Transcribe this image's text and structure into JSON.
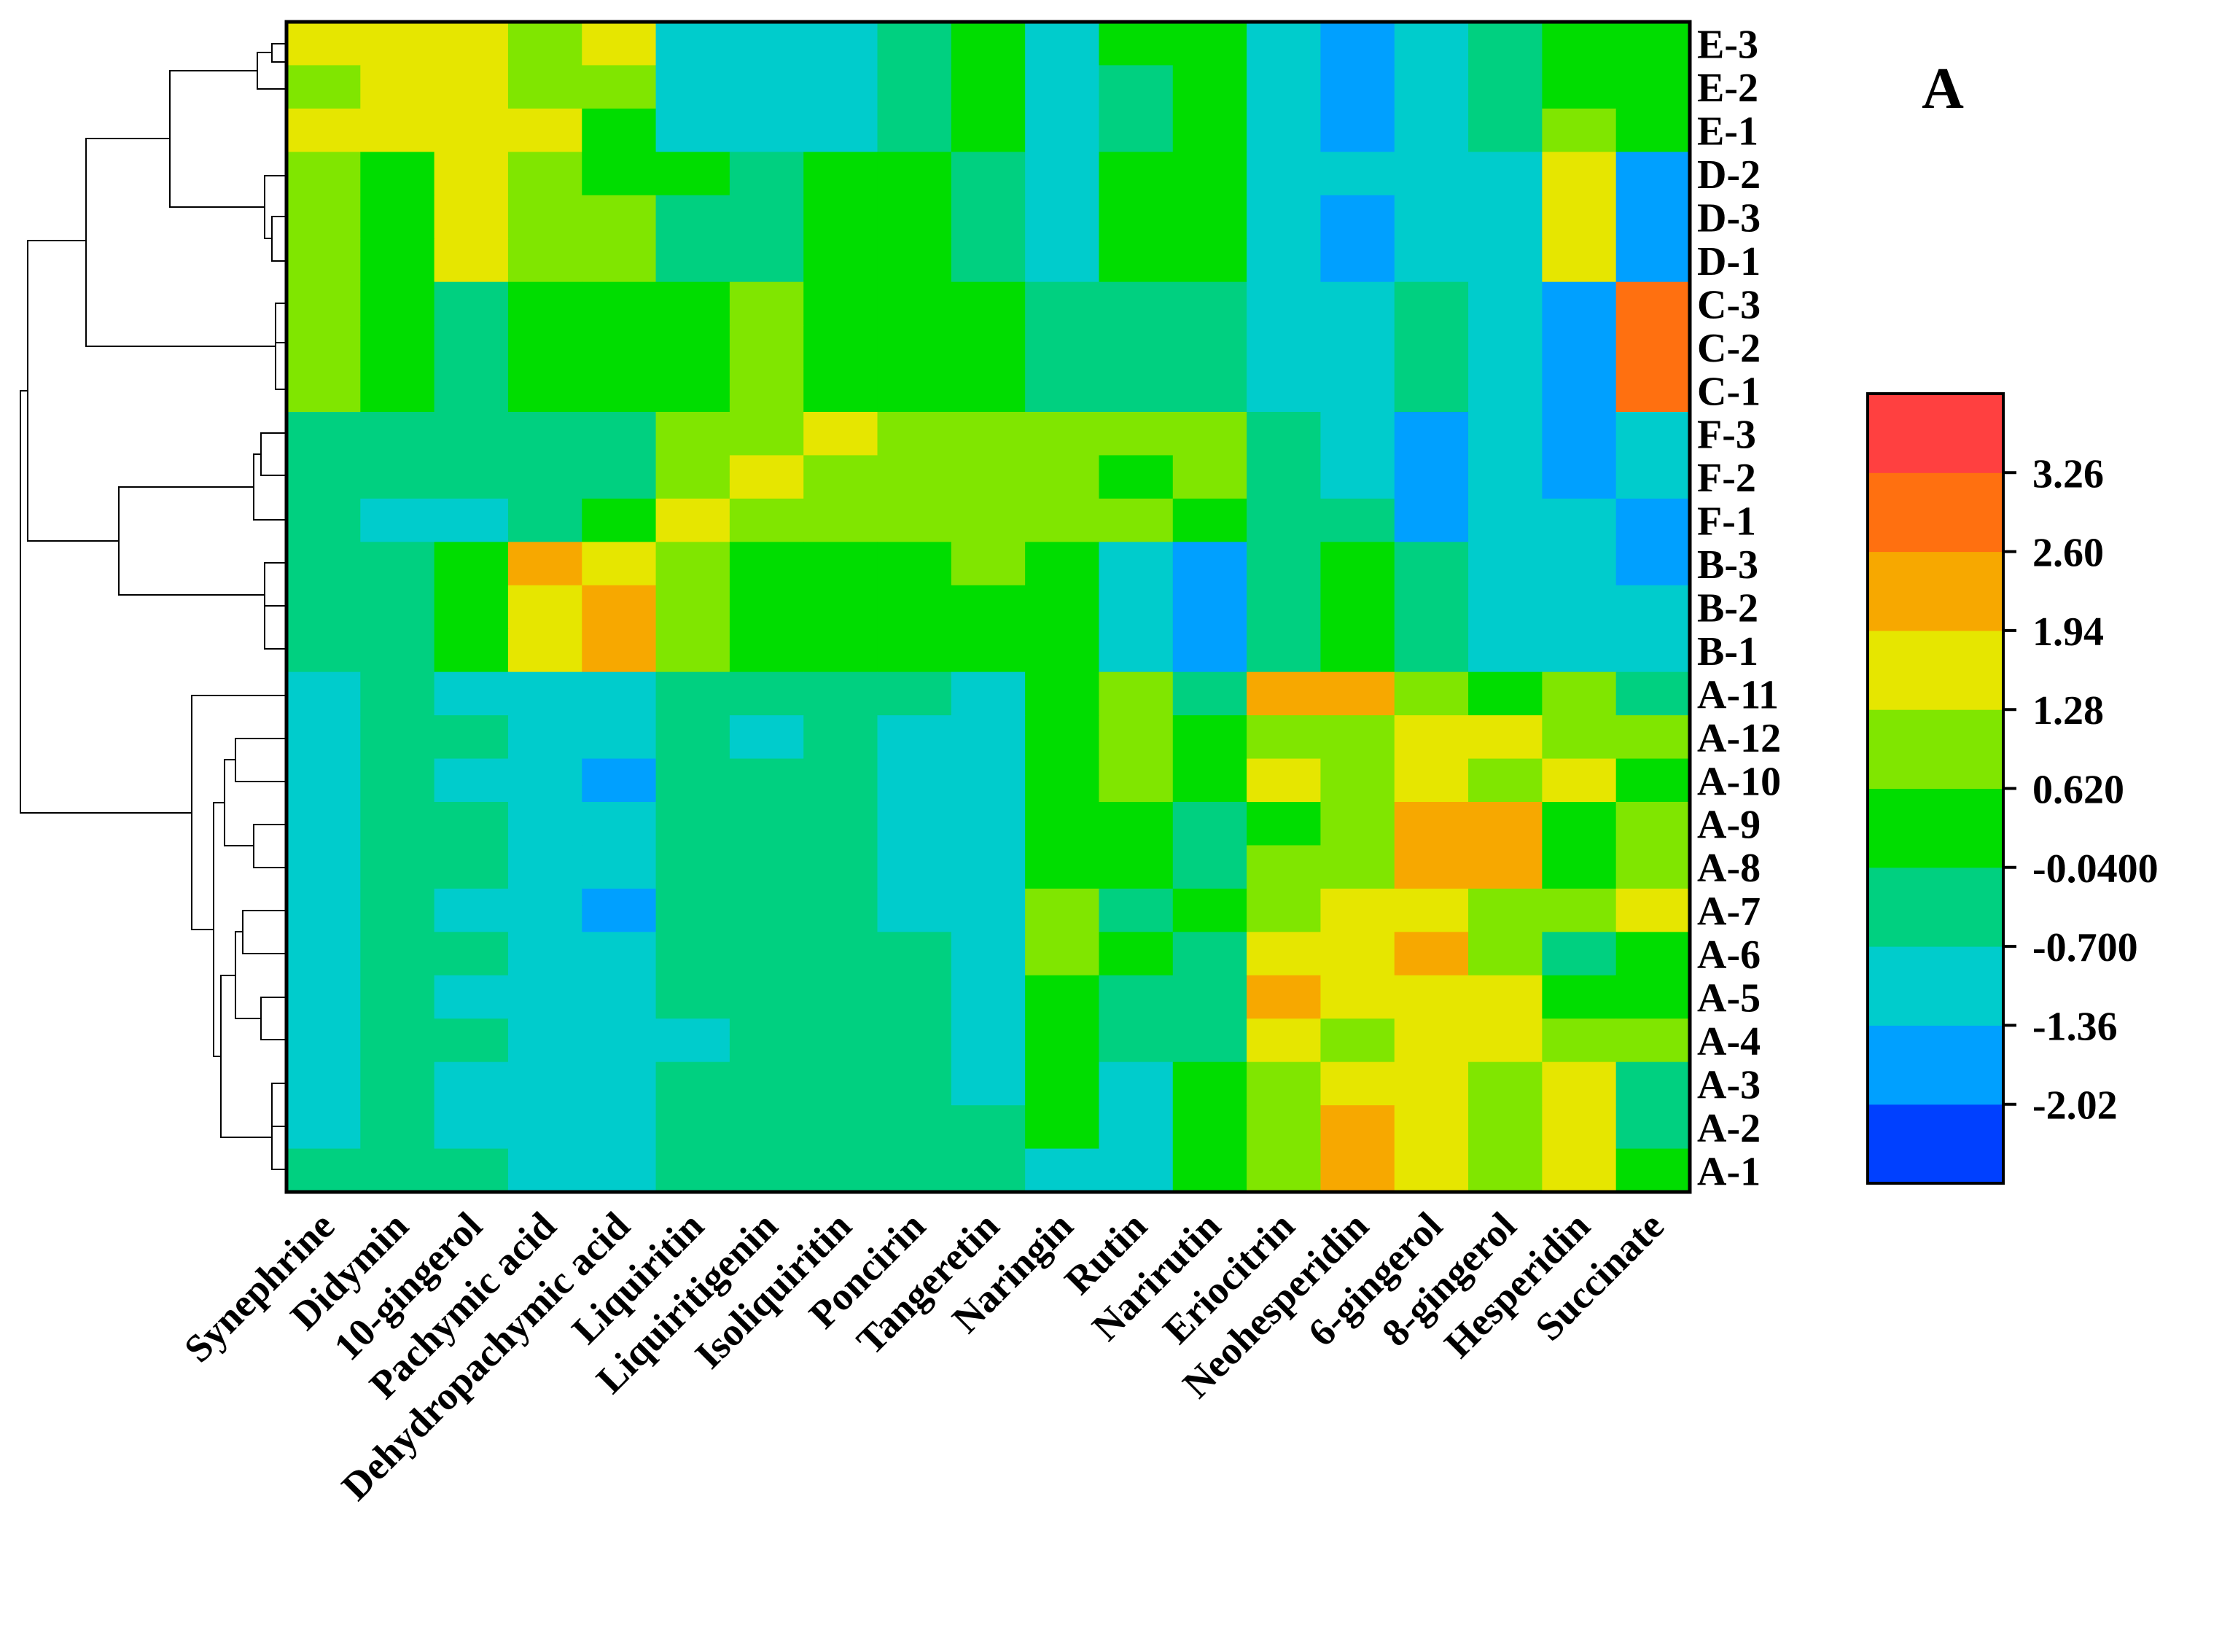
{
  "chart_data": {
    "type": "heatmap",
    "panel_label": "A",
    "rows": [
      "E-3",
      "E-2",
      "E-1",
      "D-2",
      "D-3",
      "D-1",
      "C-3",
      "C-2",
      "C-1",
      "F-3",
      "F-2",
      "F-1",
      "B-3",
      "B-2",
      "B-1",
      "A-11",
      "A-12",
      "A-10",
      "A-9",
      "A-8",
      "A-7",
      "A-6",
      "A-5",
      "A-4",
      "A-3",
      "A-2",
      "A-1"
    ],
    "columns": [
      "Synephrine",
      "Didymin",
      "10-gingerol",
      "Pachymic acid",
      "Dehydropachymic acid",
      "Liquiritin",
      "Liquiritigenin",
      "Isoliquiritin",
      "Poncirin",
      "Tangeretin",
      "Naringin",
      "Rutin",
      "Narirutin",
      "Eriocitrin",
      "Neohesperidin",
      "6-gingerol",
      "8-gingerol",
      "Hesperidin",
      "Succinate"
    ],
    "colorbar": {
      "colors": [
        "#0040ff",
        "#00a0ff",
        "#00cccc",
        "#00d080",
        "#00dd00",
        "#80e600",
        "#e6e600",
        "#f7a800",
        "#ff7010",
        "#ff4040"
      ],
      "tick_labels": [
        "-2.02",
        "-1.36",
        "-0.700",
        "-0.0400",
        "0.620",
        "1.28",
        "1.94",
        "2.60",
        "3.26"
      ],
      "min": -2.68,
      "max": 3.92
    },
    "values": [
      [
        6,
        6,
        6,
        5,
        6,
        2,
        2,
        2,
        3,
        4,
        2,
        4,
        4,
        2,
        1,
        2,
        3,
        4,
        4
      ],
      [
        5,
        6,
        6,
        5,
        5,
        2,
        2,
        2,
        3,
        4,
        2,
        3,
        4,
        2,
        1,
        2,
        3,
        4,
        4
      ],
      [
        6,
        6,
        6,
        6,
        4,
        2,
        2,
        2,
        3,
        4,
        2,
        3,
        4,
        2,
        1,
        2,
        3,
        5,
        4
      ],
      [
        5,
        4,
        6,
        5,
        4,
        4,
        3,
        4,
        4,
        3,
        2,
        4,
        4,
        2,
        2,
        2,
        2,
        6,
        1
      ],
      [
        5,
        4,
        6,
        5,
        5,
        3,
        3,
        4,
        4,
        3,
        2,
        4,
        4,
        2,
        1,
        2,
        2,
        6,
        1
      ],
      [
        5,
        4,
        6,
        5,
        5,
        3,
        3,
        4,
        4,
        3,
        2,
        4,
        4,
        2,
        1,
        2,
        2,
        6,
        1
      ],
      [
        5,
        4,
        3,
        4,
        4,
        4,
        5,
        4,
        4,
        4,
        3,
        3,
        3,
        2,
        2,
        3,
        2,
        1,
        8
      ],
      [
        5,
        4,
        3,
        4,
        4,
        4,
        5,
        4,
        4,
        4,
        3,
        3,
        3,
        2,
        2,
        3,
        2,
        1,
        8
      ],
      [
        5,
        4,
        3,
        4,
        4,
        4,
        5,
        4,
        4,
        4,
        3,
        3,
        3,
        2,
        2,
        3,
        2,
        1,
        8
      ],
      [
        3,
        3,
        3,
        3,
        3,
        5,
        5,
        6,
        5,
        5,
        5,
        5,
        5,
        3,
        2,
        1,
        2,
        1,
        2
      ],
      [
        3,
        3,
        3,
        3,
        3,
        5,
        6,
        5,
        5,
        5,
        5,
        4,
        5,
        3,
        2,
        1,
        2,
        1,
        2
      ],
      [
        3,
        2,
        2,
        3,
        4,
        6,
        5,
        5,
        5,
        5,
        5,
        5,
        4,
        3,
        3,
        1,
        2,
        2,
        1
      ],
      [
        3,
        3,
        4,
        7,
        6,
        5,
        4,
        4,
        4,
        5,
        4,
        2,
        1,
        3,
        4,
        3,
        2,
        2,
        1
      ],
      [
        3,
        3,
        4,
        6,
        7,
        5,
        4,
        4,
        4,
        4,
        4,
        2,
        1,
        3,
        4,
        3,
        2,
        2,
        2
      ],
      [
        3,
        3,
        4,
        6,
        7,
        5,
        4,
        4,
        4,
        4,
        4,
        2,
        1,
        3,
        4,
        3,
        2,
        2,
        2
      ],
      [
        2,
        3,
        2,
        2,
        2,
        3,
        3,
        3,
        3,
        2,
        4,
        5,
        3,
        7,
        7,
        5,
        4,
        5,
        3
      ],
      [
        2,
        3,
        3,
        2,
        2,
        3,
        2,
        3,
        2,
        2,
        4,
        5,
        4,
        5,
        5,
        6,
        6,
        5,
        5
      ],
      [
        2,
        3,
        2,
        2,
        1,
        3,
        3,
        3,
        2,
        2,
        4,
        5,
        4,
        6,
        5,
        6,
        5,
        6,
        4
      ],
      [
        2,
        3,
        3,
        2,
        2,
        3,
        3,
        3,
        2,
        2,
        4,
        4,
        3,
        4,
        5,
        7,
        7,
        4,
        5
      ],
      [
        2,
        3,
        3,
        2,
        2,
        3,
        3,
        3,
        2,
        2,
        4,
        4,
        3,
        5,
        5,
        7,
        7,
        4,
        5
      ],
      [
        2,
        3,
        2,
        2,
        1,
        3,
        3,
        3,
        2,
        2,
        5,
        3,
        4,
        5,
        6,
        6,
        5,
        5,
        6
      ],
      [
        2,
        3,
        3,
        2,
        2,
        3,
        3,
        3,
        3,
        2,
        5,
        4,
        3,
        6,
        6,
        7,
        5,
        3,
        4
      ],
      [
        2,
        3,
        2,
        2,
        2,
        3,
        3,
        3,
        3,
        2,
        4,
        3,
        3,
        7,
        6,
        6,
        6,
        4,
        4
      ],
      [
        2,
        3,
        3,
        2,
        2,
        2,
        3,
        3,
        3,
        2,
        4,
        3,
        3,
        6,
        5,
        6,
        6,
        5,
        5
      ],
      [
        2,
        3,
        2,
        2,
        2,
        3,
        3,
        3,
        3,
        2,
        4,
        2,
        4,
        5,
        6,
        6,
        5,
        6,
        3
      ],
      [
        2,
        3,
        2,
        2,
        2,
        3,
        3,
        3,
        3,
        3,
        4,
        2,
        4,
        5,
        7,
        6,
        5,
        6,
        3
      ],
      [
        3,
        3,
        3,
        2,
        2,
        3,
        3,
        3,
        3,
        3,
        2,
        2,
        4,
        5,
        7,
        6,
        5,
        6,
        4
      ]
    ]
  }
}
